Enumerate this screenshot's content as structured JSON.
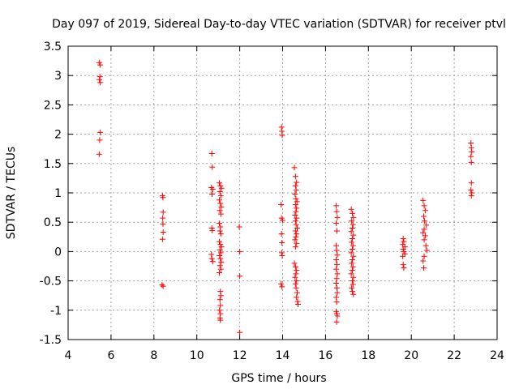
{
  "chart_data": {
    "type": "scatter",
    "title": "Day 097 of 2019, Sidereal Day-to-day VTEC variation (SDTVAR) for receiver ptvl",
    "xlabel": "GPS time / hours",
    "ylabel": "SDTVAR / TECUs",
    "xlim": [
      4,
      24
    ],
    "ylim": [
      -1.5,
      3.5
    ],
    "xticks": [
      "4",
      "6",
      "8",
      "10",
      "12",
      "14",
      "16",
      "18",
      "20",
      "22",
      "24"
    ],
    "yticks": [
      "-1.5",
      "-1",
      "-0.5",
      "0",
      "0.5",
      "1",
      "1.5",
      "2",
      "2.5",
      "3",
      "3.5"
    ],
    "grid": true,
    "marker": "+",
    "color": "#ff0000",
    "series": [
      {
        "name": "SDTVAR",
        "points": [
          [
            5.45,
            3.22
          ],
          [
            5.5,
            3.18
          ],
          [
            5.48,
            2.98
          ],
          [
            5.46,
            2.93
          ],
          [
            5.5,
            2.88
          ],
          [
            5.5,
            2.03
          ],
          [
            5.47,
            1.9
          ],
          [
            5.45,
            1.66
          ],
          [
            8.4,
            0.95
          ],
          [
            8.42,
            0.92
          ],
          [
            8.43,
            0.67
          ],
          [
            8.41,
            0.57
          ],
          [
            8.42,
            0.47
          ],
          [
            8.43,
            0.33
          ],
          [
            8.4,
            0.21
          ],
          [
            8.38,
            -0.57
          ],
          [
            8.43,
            -0.59
          ],
          [
            10.7,
            1.67
          ],
          [
            10.72,
            1.44
          ],
          [
            10.68,
            1.09
          ],
          [
            10.74,
            1.06
          ],
          [
            10.71,
            0.98
          ],
          [
            10.7,
            0.4
          ],
          [
            10.72,
            0.36
          ],
          [
            10.68,
            -0.05
          ],
          [
            10.7,
            -0.12
          ],
          [
            10.74,
            -0.17
          ],
          [
            11.05,
            1.17
          ],
          [
            11.1,
            1.12
          ],
          [
            11.15,
            1.08
          ],
          [
            11.08,
            1.02
          ],
          [
            11.12,
            0.95
          ],
          [
            11.05,
            0.88
          ],
          [
            11.1,
            0.82
          ],
          [
            11.14,
            0.76
          ],
          [
            11.07,
            0.7
          ],
          [
            11.12,
            0.64
          ],
          [
            11.05,
            0.48
          ],
          [
            11.1,
            0.42
          ],
          [
            11.08,
            0.35
          ],
          [
            11.12,
            0.3
          ],
          [
            11.05,
            0.17
          ],
          [
            11.1,
            0.12
          ],
          [
            11.15,
            0.08
          ],
          [
            11.08,
            0.03
          ],
          [
            11.12,
            -0.02
          ],
          [
            11.06,
            -0.07
          ],
          [
            11.1,
            -0.12
          ],
          [
            11.14,
            -0.18
          ],
          [
            11.08,
            -0.24
          ],
          [
            11.12,
            -0.3
          ],
          [
            11.05,
            -0.36
          ],
          [
            11.1,
            -0.68
          ],
          [
            11.12,
            -0.75
          ],
          [
            11.08,
            -0.82
          ],
          [
            11.1,
            -0.92
          ],
          [
            11.06,
            -1.0
          ],
          [
            11.1,
            -1.06
          ],
          [
            11.08,
            -1.13
          ],
          [
            11.1,
            -1.17
          ],
          [
            11.98,
            0.42
          ],
          [
            12.0,
            0.0
          ],
          [
            12.0,
            -0.42
          ],
          [
            12.0,
            -1.38
          ],
          [
            13.95,
            2.12
          ],
          [
            13.97,
            2.05
          ],
          [
            13.98,
            1.98
          ],
          [
            13.93,
            0.8
          ],
          [
            13.95,
            0.57
          ],
          [
            14.0,
            0.53
          ],
          [
            13.95,
            0.3
          ],
          [
            13.97,
            0.15
          ],
          [
            13.96,
            -0.02
          ],
          [
            13.98,
            -0.07
          ],
          [
            13.93,
            -0.55
          ],
          [
            13.97,
            -0.6
          ],
          [
            14.55,
            1.43
          ],
          [
            14.6,
            1.28
          ],
          [
            14.65,
            1.18
          ],
          [
            14.6,
            1.12
          ],
          [
            14.63,
            1.05
          ],
          [
            14.58,
            0.98
          ],
          [
            14.62,
            0.9
          ],
          [
            14.67,
            0.85
          ],
          [
            14.6,
            0.8
          ],
          [
            14.65,
            0.74
          ],
          [
            14.62,
            0.68
          ],
          [
            14.58,
            0.62
          ],
          [
            14.65,
            0.57
          ],
          [
            14.6,
            0.52
          ],
          [
            14.63,
            0.46
          ],
          [
            14.68,
            0.4
          ],
          [
            14.6,
            0.35
          ],
          [
            14.65,
            0.3
          ],
          [
            14.62,
            0.25
          ],
          [
            14.58,
            0.2
          ],
          [
            14.65,
            0.14
          ],
          [
            14.6,
            0.08
          ],
          [
            14.55,
            -0.2
          ],
          [
            14.6,
            -0.26
          ],
          [
            14.65,
            -0.32
          ],
          [
            14.62,
            -0.38
          ],
          [
            14.58,
            -0.44
          ],
          [
            14.65,
            -0.5
          ],
          [
            14.6,
            -0.55
          ],
          [
            14.63,
            -0.62
          ],
          [
            14.68,
            -0.7
          ],
          [
            14.65,
            -0.78
          ],
          [
            14.7,
            -0.85
          ],
          [
            14.72,
            -0.9
          ],
          [
            16.5,
            0.78
          ],
          [
            16.52,
            0.68
          ],
          [
            16.55,
            0.58
          ],
          [
            16.5,
            0.48
          ],
          [
            16.53,
            0.35
          ],
          [
            16.5,
            0.1
          ],
          [
            16.52,
            0.02
          ],
          [
            16.55,
            -0.06
          ],
          [
            16.5,
            -0.14
          ],
          [
            16.53,
            -0.22
          ],
          [
            16.5,
            -0.3
          ],
          [
            16.55,
            -0.38
          ],
          [
            16.52,
            -0.46
          ],
          [
            16.5,
            -0.54
          ],
          [
            16.53,
            -0.62
          ],
          [
            16.55,
            -0.7
          ],
          [
            16.5,
            -0.78
          ],
          [
            16.52,
            -0.86
          ],
          [
            16.5,
            -1.02
          ],
          [
            16.53,
            -1.06
          ],
          [
            16.55,
            -1.1
          ],
          [
            16.52,
            -1.2
          ],
          [
            17.2,
            0.72
          ],
          [
            17.25,
            0.65
          ],
          [
            17.3,
            0.58
          ],
          [
            17.22,
            0.52
          ],
          [
            17.28,
            0.46
          ],
          [
            17.25,
            0.4
          ],
          [
            17.2,
            0.34
          ],
          [
            17.3,
            0.28
          ],
          [
            17.25,
            0.22
          ],
          [
            17.22,
            0.16
          ],
          [
            17.28,
            0.1
          ],
          [
            17.25,
            0.04
          ],
          [
            17.2,
            -0.02
          ],
          [
            17.3,
            -0.08
          ],
          [
            17.25,
            -0.14
          ],
          [
            17.22,
            -0.2
          ],
          [
            17.28,
            -0.26
          ],
          [
            17.25,
            -0.32
          ],
          [
            17.2,
            -0.38
          ],
          [
            17.3,
            -0.44
          ],
          [
            17.25,
            -0.5
          ],
          [
            17.28,
            -0.56
          ],
          [
            17.22,
            -0.62
          ],
          [
            17.25,
            -0.68
          ],
          [
            17.3,
            -0.73
          ],
          [
            19.62,
            0.22
          ],
          [
            19.65,
            0.17
          ],
          [
            19.6,
            0.12
          ],
          [
            19.7,
            0.08
          ],
          [
            19.62,
            0.04
          ],
          [
            19.65,
            0.0
          ],
          [
            19.7,
            -0.04
          ],
          [
            19.6,
            -0.08
          ],
          [
            19.62,
            -0.22
          ],
          [
            19.65,
            -0.28
          ],
          [
            20.55,
            0.87
          ],
          [
            20.6,
            0.78
          ],
          [
            20.65,
            0.7
          ],
          [
            20.58,
            0.6
          ],
          [
            20.62,
            0.52
          ],
          [
            20.7,
            0.45
          ],
          [
            20.6,
            0.38
          ],
          [
            20.55,
            0.32
          ],
          [
            20.65,
            0.27
          ],
          [
            20.6,
            0.2
          ],
          [
            20.68,
            0.1
          ],
          [
            20.72,
            0.02
          ],
          [
            20.6,
            -0.08
          ],
          [
            20.55,
            -0.16
          ],
          [
            20.58,
            -0.28
          ],
          [
            22.78,
            1.85
          ],
          [
            22.8,
            1.77
          ],
          [
            22.82,
            1.7
          ],
          [
            22.78,
            1.62
          ],
          [
            22.8,
            1.52
          ],
          [
            22.8,
            1.17
          ],
          [
            22.78,
            1.05
          ],
          [
            22.82,
            1.0
          ],
          [
            22.8,
            0.95
          ]
        ]
      }
    ]
  }
}
